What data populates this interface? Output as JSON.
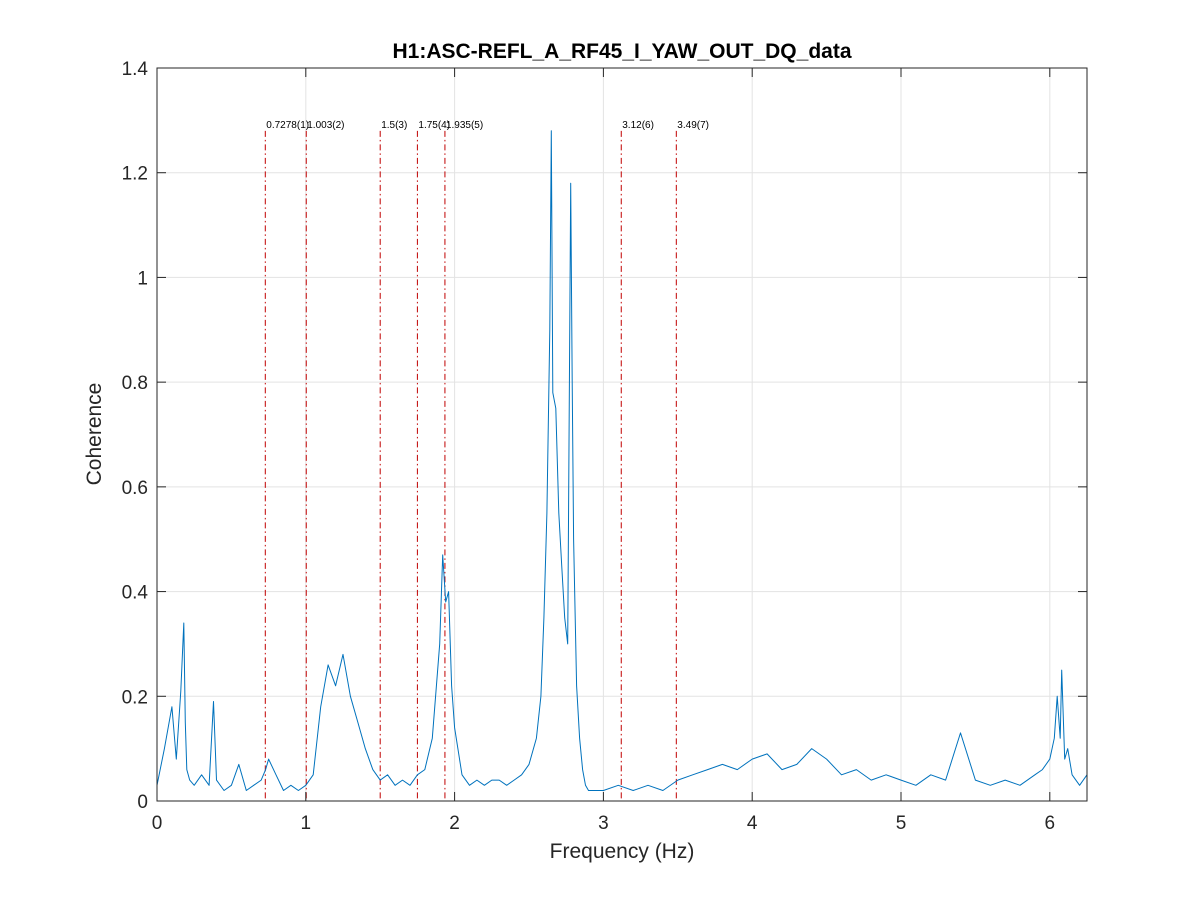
{
  "chart_data": {
    "type": "line",
    "title": "H1:ASC-REFL_A_RF45_I_YAW_OUT_DQ_data",
    "xlabel": "Frequency (Hz)",
    "ylabel": "Coherence",
    "xlim": [
      0,
      6.25
    ],
    "ylim": [
      0,
      1.4
    ],
    "grid": true,
    "x_ticks": [
      0,
      1,
      2,
      3,
      4,
      5,
      6
    ],
    "x_tick_labels": [
      "0",
      "1",
      "2",
      "3",
      "4",
      "5",
      "6"
    ],
    "y_ticks": [
      0,
      0.2,
      0.4,
      0.6,
      0.8,
      1.0,
      1.2,
      1.4
    ],
    "y_tick_labels": [
      "0",
      "0.2",
      "0.4",
      "0.6",
      "0.8",
      "1",
      "1.2",
      "1.4"
    ],
    "colors": {
      "series": "#0072BD",
      "markers": "#C00000",
      "grid": "#e3e3e3",
      "axes": "#262626"
    },
    "markers": [
      {
        "x": 0.7278,
        "label": "0.7278(1)"
      },
      {
        "x": 1.003,
        "label": "1.003(2)"
      },
      {
        "x": 1.5,
        "label": "1.5(3)"
      },
      {
        "x": 1.75,
        "label": "1.75(4)"
      },
      {
        "x": 1.935,
        "label": "1.935(5)"
      },
      {
        "x": 3.12,
        "label": "3.12(6)"
      },
      {
        "x": 3.49,
        "label": "3.49(7)"
      }
    ],
    "marker_label_y": 1.28,
    "series": [
      {
        "x": [
          0.0,
          0.05,
          0.1,
          0.13,
          0.16,
          0.18,
          0.19,
          0.2,
          0.22,
          0.25,
          0.3,
          0.35,
          0.38,
          0.4,
          0.45,
          0.5,
          0.55,
          0.6,
          0.65,
          0.7,
          0.73,
          0.75,
          0.8,
          0.85,
          0.9,
          0.95,
          1.0,
          1.05,
          1.1,
          1.15,
          1.2,
          1.25,
          1.3,
          1.35,
          1.4,
          1.45,
          1.5,
          1.55,
          1.6,
          1.65,
          1.7,
          1.75,
          1.8,
          1.85,
          1.9,
          1.92,
          1.94,
          1.96,
          1.98,
          2.0,
          2.05,
          2.1,
          2.15,
          2.2,
          2.25,
          2.3,
          2.35,
          2.4,
          2.45,
          2.5,
          2.55,
          2.58,
          2.6,
          2.62,
          2.64,
          2.65,
          2.66,
          2.68,
          2.7,
          2.72,
          2.74,
          2.76,
          2.78,
          2.79,
          2.8,
          2.82,
          2.84,
          2.86,
          2.88,
          2.9,
          2.95,
          3.0,
          3.1,
          3.2,
          3.3,
          3.4,
          3.5,
          3.6,
          3.7,
          3.8,
          3.9,
          4.0,
          4.1,
          4.2,
          4.3,
          4.4,
          4.5,
          4.6,
          4.7,
          4.8,
          4.9,
          5.0,
          5.1,
          5.2,
          5.3,
          5.4,
          5.5,
          5.6,
          5.7,
          5.8,
          5.9,
          5.95,
          6.0,
          6.03,
          6.05,
          6.07,
          6.08,
          6.1,
          6.12,
          6.15,
          6.2,
          6.25
        ],
        "y": [
          0.03,
          0.1,
          0.18,
          0.08,
          0.21,
          0.34,
          0.15,
          0.06,
          0.04,
          0.03,
          0.05,
          0.03,
          0.19,
          0.04,
          0.02,
          0.03,
          0.07,
          0.02,
          0.03,
          0.04,
          0.06,
          0.08,
          0.05,
          0.02,
          0.03,
          0.02,
          0.03,
          0.05,
          0.18,
          0.26,
          0.22,
          0.28,
          0.2,
          0.15,
          0.1,
          0.06,
          0.04,
          0.05,
          0.03,
          0.04,
          0.03,
          0.05,
          0.06,
          0.12,
          0.3,
          0.47,
          0.38,
          0.4,
          0.22,
          0.14,
          0.05,
          0.03,
          0.04,
          0.03,
          0.04,
          0.04,
          0.03,
          0.04,
          0.05,
          0.07,
          0.12,
          0.2,
          0.35,
          0.55,
          0.9,
          1.28,
          0.78,
          0.75,
          0.55,
          0.45,
          0.35,
          0.3,
          1.18,
          0.8,
          0.5,
          0.22,
          0.12,
          0.06,
          0.03,
          0.02,
          0.02,
          0.02,
          0.03,
          0.02,
          0.03,
          0.02,
          0.04,
          0.05,
          0.06,
          0.07,
          0.06,
          0.08,
          0.09,
          0.06,
          0.07,
          0.1,
          0.08,
          0.05,
          0.06,
          0.04,
          0.05,
          0.04,
          0.03,
          0.05,
          0.04,
          0.13,
          0.04,
          0.03,
          0.04,
          0.03,
          0.05,
          0.06,
          0.08,
          0.12,
          0.2,
          0.12,
          0.25,
          0.08,
          0.1,
          0.05,
          0.03,
          0.05
        ]
      }
    ]
  }
}
